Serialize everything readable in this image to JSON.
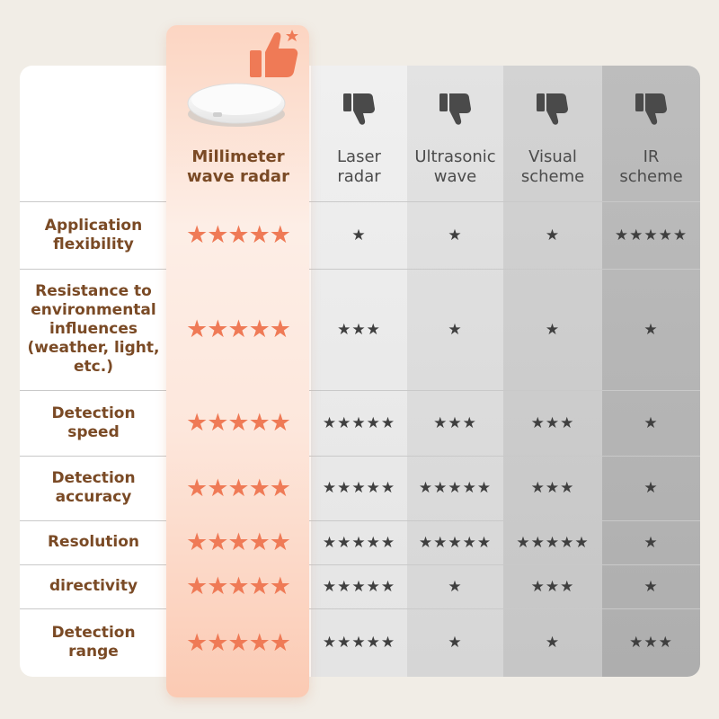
{
  "columns": [
    {
      "label": "Millimeter wave radar",
      "icon": "thumbs-up-star-icon"
    },
    {
      "label": "Laser radar",
      "icon": "thumbs-down-icon"
    },
    {
      "label": "Ultrasonic wave",
      "icon": "thumbs-down-icon"
    },
    {
      "label": "Visual scheme",
      "icon": "thumbs-down-icon"
    },
    {
      "label": "IR scheme",
      "icon": "thumbs-down-icon"
    }
  ],
  "header_lines": [
    [
      "Millimeter",
      "wave radar"
    ],
    [
      "Laser",
      "radar"
    ],
    [
      "Ultrasonic",
      "wave"
    ],
    [
      "Visual",
      "scheme"
    ],
    [
      "IR",
      "scheme"
    ]
  ],
  "colors": {
    "highlight": "#ef7a56",
    "label_text": "#7a4a25",
    "star_dark": "#3f3f3f"
  },
  "rows": [
    {
      "label": "Application flexibility",
      "ratings": [
        5,
        1,
        1,
        1,
        5
      ]
    },
    {
      "label": "Resistance to environmental influences (weather, light, etc.)",
      "ratings": [
        5,
        3,
        1,
        1,
        1
      ]
    },
    {
      "label": "Detection speed",
      "ratings": [
        5,
        5,
        3,
        3,
        1
      ]
    },
    {
      "label": "Detection accuracy",
      "ratings": [
        5,
        5,
        5,
        3,
        1
      ]
    },
    {
      "label": "Resolution",
      "ratings": [
        5,
        5,
        5,
        5,
        1
      ]
    },
    {
      "label": "directivity",
      "ratings": [
        5,
        5,
        1,
        3,
        1
      ]
    },
    {
      "label": "Detection range",
      "ratings": [
        5,
        5,
        1,
        1,
        3
      ]
    }
  ],
  "row_label_lines": [
    [
      "Application",
      "flexibility"
    ],
    [
      "Resistance to",
      "environmental",
      "influences",
      "(weather, light,",
      "etc.)"
    ],
    [
      "Detection",
      "speed"
    ],
    [
      "Detection",
      "accuracy"
    ],
    [
      "Resolution"
    ],
    [
      "directivity"
    ],
    [
      "Detection",
      "range"
    ]
  ],
  "product_image": "round-sensor-device-image"
}
